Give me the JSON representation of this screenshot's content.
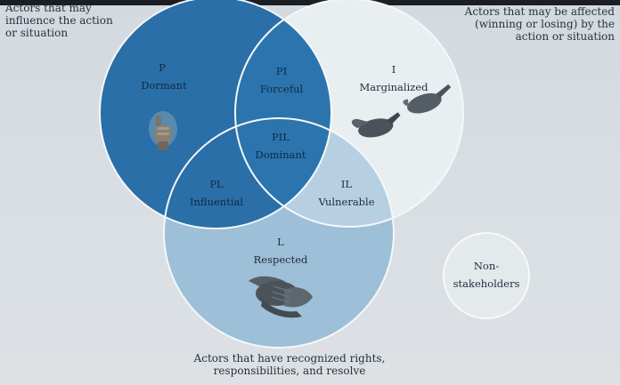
{
  "captions": {
    "power": [
      "Actors that may",
      "influence the action",
      "or situation"
    ],
    "urgency": [
      "Actors that may be affected",
      "(winning or losing) by the",
      "action or situation"
    ],
    "legitimacy": [
      "Actors that have recognized rights,",
      "responsibilities, and resolve"
    ]
  },
  "regions": {
    "dormant": {
      "code": "P",
      "label": "Dormant"
    },
    "forceful": {
      "code": "PI",
      "label": "Forceful"
    },
    "marginalized": {
      "code": "I",
      "label": "Marginalized"
    },
    "dominant": {
      "code": "PIL",
      "label": "Dominant"
    },
    "influential": {
      "code": "PL",
      "label": "Influential"
    },
    "vulnerable": {
      "code": "IL",
      "label": "Vulnerable"
    },
    "respected": {
      "code": "L",
      "label": "Respected"
    }
  },
  "non_stakeholders": [
    "Non-",
    "stakeholders"
  ],
  "colors": {
    "power_circle": "#2a6fa8",
    "legitimacy_circle": "#9dbfd7",
    "urgency_circle": "#e9eef1",
    "outline": "#f4f7f9",
    "hand_icon": "#4b535a"
  },
  "icons": {
    "dormant": "fist-icon",
    "marginalized": "open-hands-icon",
    "respected": "clasped-hands-icon"
  }
}
